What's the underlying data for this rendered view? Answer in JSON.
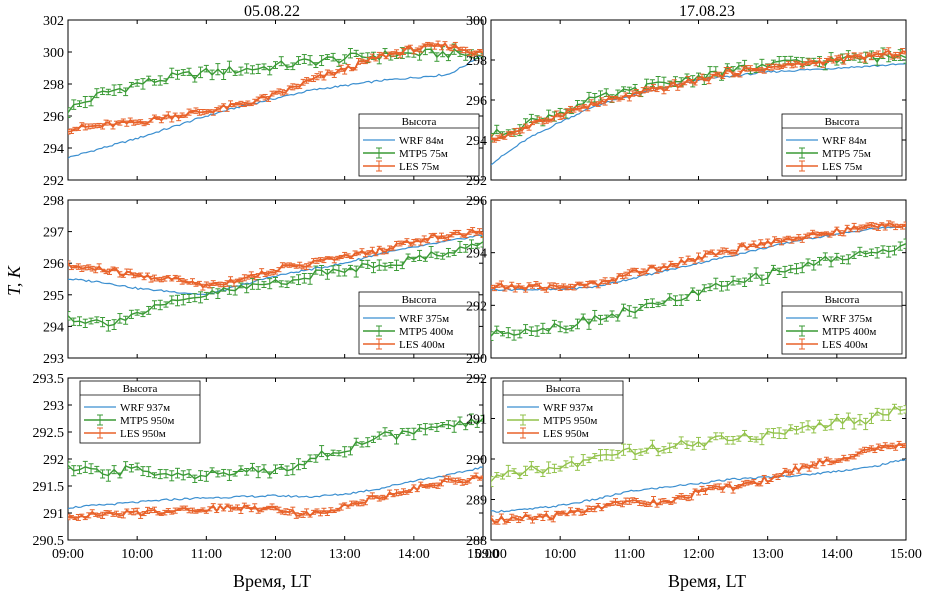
{
  "figure": {
    "col_titles": [
      "05.08.22",
      "17.08.23"
    ],
    "ylabel": "T, K",
    "xlabel": "Время, LT"
  },
  "colors": {
    "WRF": "#3b8fd0",
    "MTP5": "#3a9a35",
    "MTP5_light": "#92c24a",
    "LES": "#e8622a"
  },
  "chart_data": [
    {
      "type": "line",
      "title": "05.08.22",
      "xlim": [
        9,
        15
      ],
      "ylim": [
        292,
        302
      ],
      "yticks": [
        "292",
        "294",
        "296",
        "298",
        "300",
        "302"
      ],
      "xticks": [
        "09:00",
        "10:00",
        "11:00",
        "12:00",
        "13:00",
        "14:00",
        "15:00"
      ],
      "legend": {
        "position": "lower-right",
        "title": "Высота",
        "entries": [
          "WRF   84м",
          "MTP5  75м",
          "LES    75м"
        ]
      },
      "series": [
        {
          "name": "WRF",
          "x": [
            9,
            9.5,
            10,
            10.5,
            11,
            11.5,
            12,
            12.5,
            13,
            13.5,
            14,
            14.5,
            14.8,
            15
          ],
          "y": [
            293.4,
            294.0,
            294.6,
            295.3,
            296.0,
            296.6,
            297.1,
            297.6,
            297.9,
            298.2,
            298.4,
            298.6,
            299.3,
            299.9
          ]
        },
        {
          "name": "MTP5",
          "x": [
            9,
            9.5,
            10,
            10.5,
            11,
            11.5,
            12,
            12.5,
            13,
            13.5,
            14,
            14.5,
            15
          ],
          "y": [
            296.4,
            297.4,
            298.0,
            298.4,
            298.7,
            298.9,
            299.1,
            299.4,
            299.6,
            299.8,
            299.9,
            299.9,
            299.8
          ]
        },
        {
          "name": "LES",
          "x": [
            9,
            9.5,
            10,
            10.5,
            11,
            11.5,
            12,
            12.5,
            13,
            13.5,
            14,
            14.5,
            15
          ],
          "y": [
            295.2,
            295.4,
            295.6,
            296.0,
            296.3,
            296.7,
            297.3,
            298.2,
            298.9,
            299.7,
            300.2,
            300.4,
            299.9
          ]
        }
      ]
    },
    {
      "type": "line",
      "title": "17.08.23",
      "xlim": [
        9,
        15
      ],
      "ylim": [
        292,
        300
      ],
      "yticks": [
        "292",
        "294",
        "296",
        "298",
        "300"
      ],
      "xticks": [
        "09:00",
        "10:00",
        "11:00",
        "12:00",
        "13:00",
        "14:00",
        "15:00"
      ],
      "legend": {
        "position": "lower-right",
        "title": "Высота",
        "entries": [
          "WRF   84м",
          "MTP5  75м",
          "LES    75м"
        ]
      },
      "series": [
        {
          "name": "WRF",
          "x": [
            9,
            9.5,
            10,
            10.5,
            11,
            11.5,
            12,
            12.5,
            13,
            13.5,
            14,
            14.5,
            15
          ],
          "y": [
            292.8,
            294.0,
            294.9,
            295.7,
            296.2,
            296.6,
            297.0,
            297.2,
            297.4,
            297.5,
            297.6,
            297.7,
            297.8
          ]
        },
        {
          "name": "MTP5",
          "x": [
            9,
            9.5,
            10,
            10.5,
            11,
            11.5,
            12,
            12.5,
            13,
            13.5,
            14,
            14.5,
            15
          ],
          "y": [
            294.2,
            294.8,
            295.4,
            296.0,
            296.4,
            296.8,
            297.2,
            297.5,
            297.7,
            297.9,
            298.0,
            298.1,
            298.2
          ]
        },
        {
          "name": "LES",
          "x": [
            9,
            9.5,
            10,
            10.5,
            11,
            11.5,
            12,
            12.5,
            13,
            13.5,
            14,
            14.5,
            15
          ],
          "y": [
            294.0,
            294.6,
            295.3,
            295.8,
            296.2,
            296.6,
            297.0,
            297.4,
            297.6,
            297.8,
            298.0,
            298.2,
            298.4
          ]
        }
      ]
    },
    {
      "type": "line",
      "xlim": [
        9,
        15
      ],
      "ylim": [
        293,
        298
      ],
      "yticks": [
        "293",
        "294",
        "295",
        "296",
        "297",
        "298"
      ],
      "xticks": [
        "09:00",
        "10:00",
        "11:00",
        "12:00",
        "13:00",
        "14:00",
        "15:00"
      ],
      "legend": {
        "position": "lower-right",
        "title": "Высота",
        "entries": [
          "WRF   375м",
          "MTP5 400м",
          "LES    400м"
        ]
      },
      "series": [
        {
          "name": "WRF",
          "x": [
            9,
            9.5,
            10,
            10.5,
            11,
            11.5,
            12,
            12.5,
            13,
            13.5,
            14,
            14.5,
            15
          ],
          "y": [
            295.5,
            295.4,
            295.2,
            295.1,
            295.0,
            295.3,
            295.6,
            295.8,
            296.0,
            296.3,
            296.5,
            296.7,
            296.9
          ]
        },
        {
          "name": "MTP5",
          "x": [
            9,
            9.5,
            10,
            10.5,
            11,
            11.5,
            12,
            12.5,
            13,
            13.5,
            14,
            14.5,
            15
          ],
          "y": [
            294.3,
            294.1,
            294.4,
            294.7,
            295.0,
            295.2,
            295.4,
            295.6,
            295.8,
            296.0,
            296.1,
            296.4,
            296.6
          ]
        },
        {
          "name": "LES",
          "x": [
            9,
            9.5,
            10,
            10.5,
            11,
            11.5,
            12,
            12.5,
            13,
            13.5,
            14,
            14.5,
            15
          ],
          "y": [
            295.9,
            295.8,
            295.6,
            295.5,
            295.3,
            295.5,
            295.8,
            296.0,
            296.2,
            296.4,
            296.7,
            296.9,
            297.0
          ]
        }
      ]
    },
    {
      "type": "line",
      "xlim": [
        9,
        15
      ],
      "ylim": [
        290,
        296
      ],
      "yticks": [
        "290",
        "292",
        "294",
        "296"
      ],
      "xticks": [
        "09:00",
        "10:00",
        "11:00",
        "12:00",
        "13:00",
        "14:00",
        "15:00"
      ],
      "legend": {
        "position": "lower-right",
        "title": "Высота",
        "entries": [
          "WRF   375м",
          "MTP5 400м",
          "LES    400м"
        ]
      },
      "series": [
        {
          "name": "WRF",
          "x": [
            9,
            9.5,
            10,
            10.5,
            11,
            11.5,
            12,
            12.5,
            13,
            13.5,
            14,
            14.5,
            15
          ],
          "y": [
            292.6,
            292.6,
            292.6,
            292.7,
            293.0,
            293.3,
            293.6,
            293.9,
            294.2,
            294.5,
            294.7,
            294.9,
            295.0
          ]
        },
        {
          "name": "MTP5",
          "x": [
            9,
            9.5,
            10,
            10.5,
            11,
            11.5,
            12,
            12.5,
            13,
            13.5,
            14,
            14.5,
            15
          ],
          "y": [
            290.9,
            291.1,
            291.2,
            291.5,
            291.8,
            292.1,
            292.5,
            292.8,
            293.2,
            293.5,
            293.8,
            294.0,
            294.2
          ]
        },
        {
          "name": "LES",
          "x": [
            9,
            9.5,
            10,
            10.5,
            11,
            11.5,
            12,
            12.5,
            13,
            13.5,
            14,
            14.5,
            15
          ],
          "y": [
            292.7,
            292.7,
            292.7,
            292.8,
            293.2,
            293.5,
            293.8,
            294.1,
            294.4,
            294.6,
            294.8,
            295.0,
            295.1
          ]
        }
      ]
    },
    {
      "type": "line",
      "xlim": [
        9,
        15
      ],
      "ylim": [
        290.5,
        293.5
      ],
      "yticks": [
        "290.5",
        "291",
        "291.5",
        "292",
        "292.5",
        "293",
        "293.5"
      ],
      "xticks": [
        "09:00",
        "10:00",
        "11:00",
        "12:00",
        "13:00",
        "14:00",
        "15:00"
      ],
      "legend": {
        "position": "top-left",
        "title": "Высота",
        "entries": [
          "WRF   937м",
          "MTP5 950м",
          "LES    950м"
        ]
      },
      "series": [
        {
          "name": "WRF",
          "x": [
            9,
            9.5,
            10,
            10.5,
            11,
            11.5,
            12,
            12.5,
            13,
            13.5,
            14,
            14.5,
            15
          ],
          "y": [
            291.1,
            291.15,
            291.2,
            291.25,
            291.28,
            291.3,
            291.32,
            291.3,
            291.35,
            291.45,
            291.6,
            291.7,
            291.85
          ]
        },
        {
          "name": "MTP5",
          "x": [
            9,
            9.5,
            10,
            10.5,
            11,
            11.5,
            12,
            12.5,
            13,
            13.5,
            14,
            14.5,
            15
          ],
          "y": [
            291.8,
            291.75,
            291.8,
            291.75,
            291.7,
            291.75,
            291.8,
            292.0,
            292.2,
            292.4,
            292.5,
            292.6,
            292.7
          ]
        },
        {
          "name": "LES",
          "x": [
            9,
            9.5,
            10,
            10.5,
            11,
            11.5,
            12,
            12.5,
            13,
            13.5,
            14,
            14.5,
            15
          ],
          "y": [
            290.95,
            290.97,
            291.0,
            291.05,
            291.08,
            291.1,
            291.1,
            290.95,
            291.15,
            291.3,
            291.45,
            291.6,
            291.65
          ]
        }
      ]
    },
    {
      "type": "line",
      "xlim": [
        9,
        15
      ],
      "ylim": [
        288,
        292
      ],
      "yticks": [
        "288",
        "289",
        "290",
        "291",
        "292"
      ],
      "xticks": [
        "09:00",
        "10:00",
        "11:00",
        "12:00",
        "13:00",
        "14:00",
        "15:00"
      ],
      "legend": {
        "position": "top-left",
        "title": "Высота",
        "entries": [
          "WRF   937м",
          "MTP5 950м",
          "LES    950м"
        ]
      },
      "series": [
        {
          "name": "WRF",
          "x": [
            9,
            9.5,
            10,
            10.5,
            11,
            11.5,
            12,
            12.5,
            13,
            13.5,
            14,
            14.5,
            15
          ],
          "y": [
            288.7,
            288.75,
            288.85,
            289.0,
            289.2,
            289.3,
            289.4,
            289.5,
            289.55,
            289.6,
            289.7,
            289.8,
            290.0
          ]
        },
        {
          "name": "MTP5",
          "x": [
            9,
            9.5,
            10,
            10.5,
            11,
            11.5,
            12,
            12.5,
            13,
            13.5,
            14,
            14.5,
            15
          ],
          "y": [
            289.5,
            289.7,
            289.8,
            290.0,
            290.2,
            290.3,
            290.4,
            290.5,
            290.6,
            290.8,
            290.9,
            291.0,
            291.3
          ]
        },
        {
          "name": "LES",
          "x": [
            9,
            9.5,
            10,
            10.5,
            11,
            11.5,
            12,
            12.5,
            13,
            13.5,
            14,
            14.5,
            15
          ],
          "y": [
            288.5,
            288.55,
            288.6,
            288.8,
            289.0,
            288.9,
            289.2,
            289.3,
            289.5,
            289.8,
            290.0,
            290.2,
            290.4
          ]
        }
      ]
    }
  ]
}
